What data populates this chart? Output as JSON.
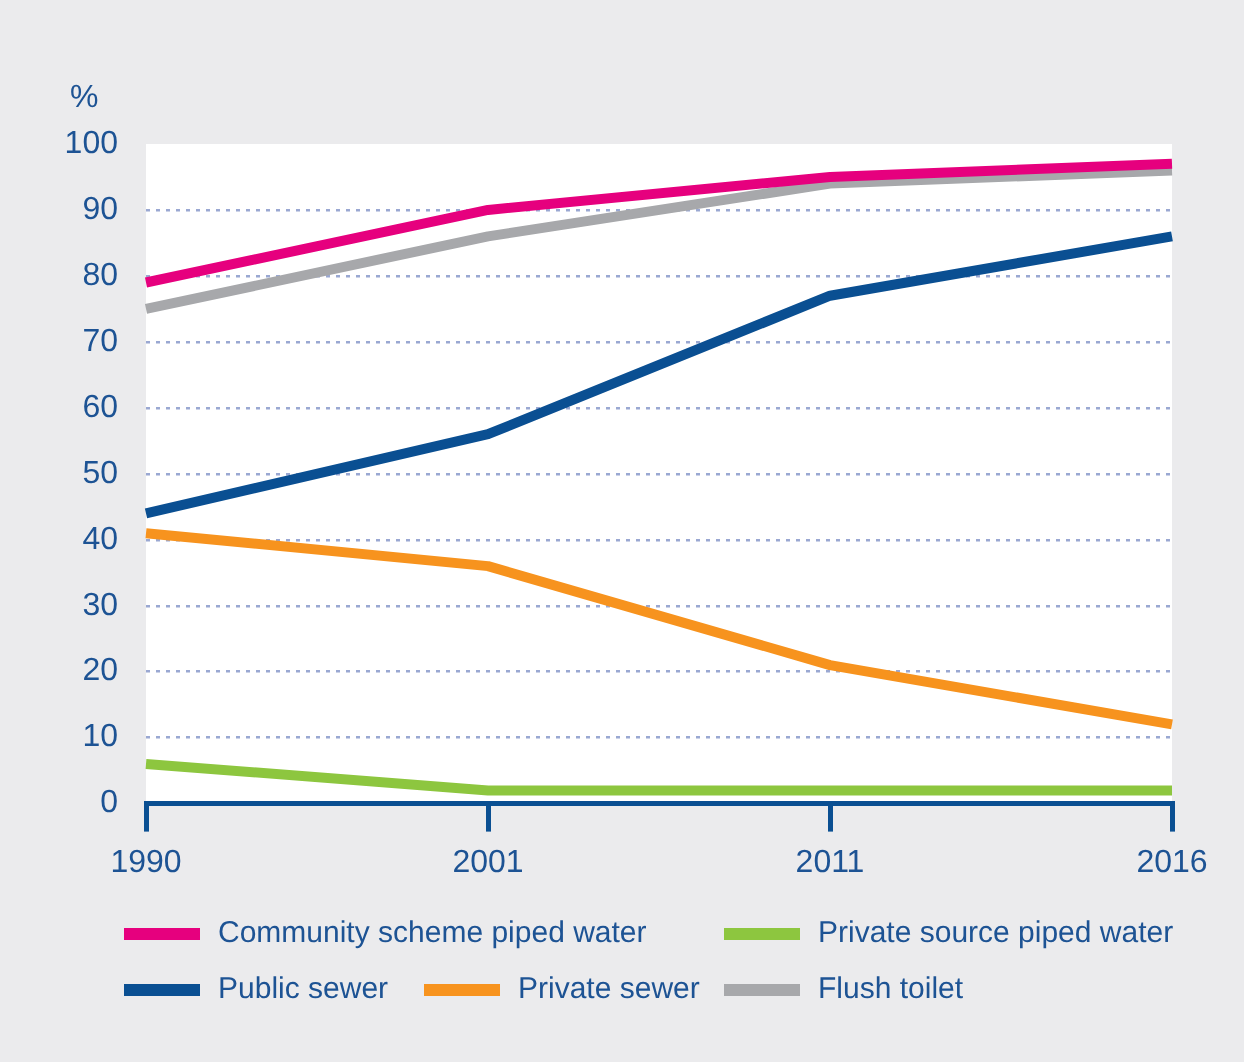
{
  "chart_data": {
    "type": "line",
    "ylabel": "%",
    "categories": [
      "1990",
      "2001",
      "2011",
      "2016"
    ],
    "series": [
      {
        "name": "Community scheme piped water",
        "color": "#e6007e",
        "values": [
          79,
          90,
          95,
          97
        ]
      },
      {
        "name": "Private source piped water",
        "color": "#8dc63f",
        "values": [
          6,
          2,
          2,
          2
        ]
      },
      {
        "name": "Public sewer",
        "color": "#0a4f92",
        "values": [
          44,
          56,
          77,
          86
        ]
      },
      {
        "name": "Private sewer",
        "color": "#f7931e",
        "values": [
          41,
          36,
          21,
          12
        ]
      },
      {
        "name": "Flush toilet",
        "color": "#a7a8ab",
        "values": [
          75,
          86,
          94,
          96
        ]
      }
    ],
    "ylim": [
      0,
      100
    ],
    "yticks": [
      0,
      10,
      20,
      30,
      40,
      50,
      60,
      70,
      80,
      90,
      100
    ],
    "grid": "y",
    "legend": "bottom",
    "marker": "none",
    "line_style": "solid"
  }
}
